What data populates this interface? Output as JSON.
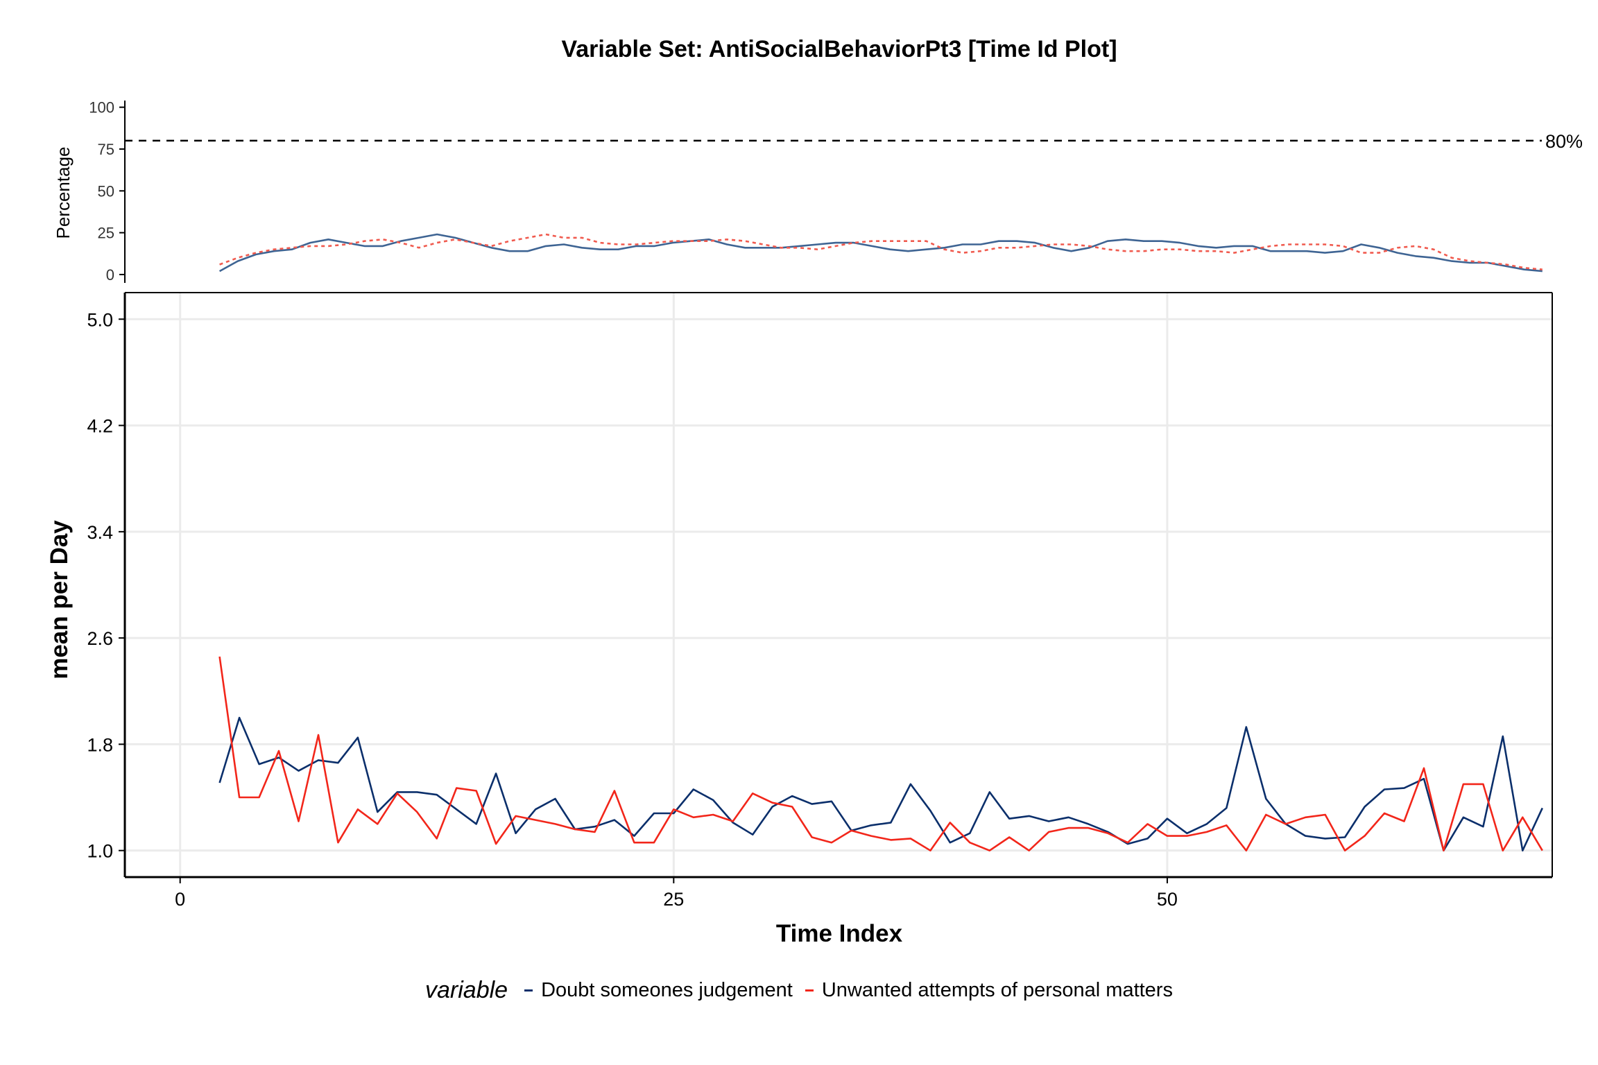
{
  "chart_data": {
    "type": "line",
    "title": "Variable Set: AntiSocialBehaviorPt3 [Time Id Plot]",
    "xlabel": "Time Index",
    "ylabel": "mean per Day",
    "xlim": [
      -2.8,
      69.5
    ],
    "ylim": [
      0.8,
      5.2
    ],
    "xticks": [
      "0",
      "25",
      "50"
    ],
    "yticks": [
      "1.0",
      "1.8",
      "2.6",
      "3.4",
      "4.2",
      "5.0"
    ],
    "grid": true,
    "legend": {
      "title": "variable",
      "position": "bottom",
      "entries": [
        "Doubt someones judgement",
        "Unwanted attempts of personal matters"
      ]
    },
    "colors": {
      "doubt": "#0B2F6B",
      "unwanted": "#F2261A",
      "doubt_pct": "#3E6493",
      "unwanted_pct": "#F05A4E"
    },
    "x": [
      2,
      3,
      4,
      5,
      6,
      7,
      8,
      9,
      10,
      11,
      12,
      13,
      14,
      15,
      16,
      17,
      18,
      19,
      20,
      21,
      22,
      23,
      24,
      25,
      26,
      27,
      28,
      29,
      30,
      31,
      32,
      33,
      34,
      35,
      36,
      37,
      38,
      39,
      40,
      41,
      42,
      43,
      44,
      45,
      46,
      47,
      48,
      49,
      50,
      51,
      52,
      53,
      54,
      55,
      56,
      57,
      58,
      59,
      60,
      61,
      62,
      63,
      64,
      65,
      66,
      67,
      68,
      69
    ],
    "series": [
      {
        "name": "Doubt someones judgement",
        "key": "doubt",
        "values": [
          1.51,
          2.0,
          1.65,
          1.7,
          1.6,
          1.68,
          1.66,
          1.85,
          1.29,
          1.44,
          1.44,
          1.42,
          1.31,
          1.2,
          1.58,
          1.13,
          1.31,
          1.39,
          1.16,
          1.18,
          1.23,
          1.11,
          1.28,
          1.28,
          1.46,
          1.38,
          1.21,
          1.12,
          1.33,
          1.41,
          1.35,
          1.37,
          1.15,
          1.19,
          1.21,
          1.5,
          1.3,
          1.06,
          1.13,
          1.44,
          1.24,
          1.26,
          1.22,
          1.25,
          1.2,
          1.14,
          1.05,
          1.09,
          1.24,
          1.13,
          1.2,
          1.32,
          1.93,
          1.39,
          1.2,
          1.11,
          1.09,
          1.1,
          1.33,
          1.46,
          1.47,
          1.54,
          1.0,
          1.25,
          1.18,
          1.86,
          1.0,
          1.32
        ]
      },
      {
        "name": "Unwanted attempts of personal matters",
        "key": "unwanted",
        "values": [
          2.46,
          1.4,
          1.4,
          1.75,
          1.22,
          1.87,
          1.06,
          1.31,
          1.2,
          1.43,
          1.29,
          1.09,
          1.47,
          1.45,
          1.05,
          1.26,
          1.23,
          1.2,
          1.16,
          1.14,
          1.45,
          1.06,
          1.06,
          1.31,
          1.25,
          1.27,
          1.22,
          1.43,
          1.36,
          1.33,
          1.1,
          1.06,
          1.15,
          1.11,
          1.08,
          1.09,
          1.0,
          1.21,
          1.06,
          1.0,
          1.1,
          1.0,
          1.14,
          1.17,
          1.17,
          1.13,
          1.06,
          1.2,
          1.11,
          1.11,
          1.14,
          1.19,
          1.0,
          1.27,
          1.2,
          1.25,
          1.27,
          1.0,
          1.11,
          1.28,
          1.22,
          1.62,
          1.0,
          1.5,
          1.5,
          1.0,
          1.25,
          1.0
        ]
      }
    ],
    "percentage_panel": {
      "ylabel": "Percentage",
      "ylim": [
        -5,
        104
      ],
      "yticks": [
        "0",
        "25",
        "50",
        "75",
        "100"
      ],
      "threshold": 80,
      "threshold_label": "80%",
      "series": [
        {
          "name": "Doubt someones judgement",
          "key": "doubt_pct",
          "style": "solid",
          "values": [
            2,
            8,
            12,
            14,
            15,
            19,
            21,
            19,
            17,
            17,
            20,
            22,
            24,
            22,
            19,
            16,
            14,
            14,
            17,
            18,
            16,
            15,
            15,
            17,
            17,
            19,
            20,
            21,
            18,
            16,
            16,
            16,
            17,
            18,
            19,
            19,
            17,
            15,
            14,
            15,
            16,
            18,
            18,
            20,
            20,
            19,
            16,
            14,
            16,
            20,
            21,
            20,
            20,
            19,
            17,
            16,
            17,
            17,
            14,
            14,
            14,
            13,
            14,
            18,
            16,
            13,
            11,
            10,
            8,
            7,
            7,
            5,
            3,
            2
          ]
        },
        {
          "name": "Unwanted attempts of personal matters",
          "key": "unwanted_pct",
          "style": "dotted",
          "values": [
            6,
            10,
            13,
            15,
            16,
            17,
            17,
            18,
            20,
            21,
            19,
            16,
            19,
            21,
            19,
            17,
            20,
            22,
            24,
            22,
            22,
            19,
            18,
            18,
            19,
            20,
            20,
            20,
            21,
            20,
            18,
            16,
            16,
            15,
            17,
            19,
            20,
            20,
            20,
            20,
            15,
            13,
            14,
            16,
            16,
            17,
            18,
            18,
            17,
            15,
            14,
            14,
            15,
            15,
            14,
            14,
            13,
            15,
            17,
            18,
            18,
            18,
            17,
            13,
            13,
            16,
            17,
            15,
            10,
            8,
            7,
            6,
            4,
            3
          ]
        }
      ]
    }
  }
}
